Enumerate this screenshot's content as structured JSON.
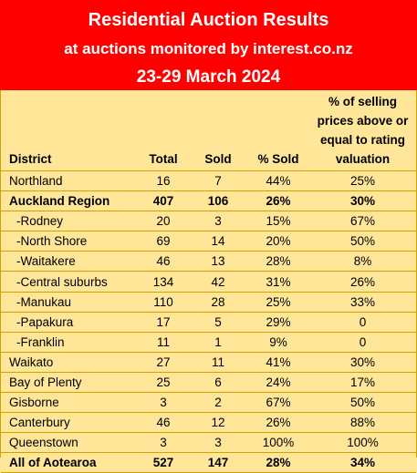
{
  "header": {
    "title": "Residential Auction Results",
    "subtitle": "at auctions monitored by interest.co.nz",
    "date_range": "23-29 March 2024"
  },
  "table": {
    "columns": [
      "District",
      "Total",
      "Sold",
      "% Sold",
      "% of selling prices above or equal to rating valuation"
    ],
    "rows": [
      {
        "district": "Northland",
        "total": "16",
        "sold": "7",
        "pct_sold": "44%",
        "pct_above_rv": "25%",
        "style": "normal"
      },
      {
        "district": "Auckland Region",
        "total": "407",
        "sold": "106",
        "pct_sold": "26%",
        "pct_above_rv": "30%",
        "style": "bold"
      },
      {
        "district": "-Rodney",
        "total": "20",
        "sold": "3",
        "pct_sold": "15%",
        "pct_above_rv": "67%",
        "style": "sub"
      },
      {
        "district": "-North Shore",
        "total": "69",
        "sold": "14",
        "pct_sold": "20%",
        "pct_above_rv": "50%",
        "style": "sub"
      },
      {
        "district": "-Waitakere",
        "total": "46",
        "sold": "13",
        "pct_sold": "28%",
        "pct_above_rv": "8%",
        "style": "sub"
      },
      {
        "district": "-Central suburbs",
        "total": "134",
        "sold": "42",
        "pct_sold": "31%",
        "pct_above_rv": "26%",
        "style": "sub"
      },
      {
        "district": "-Manukau",
        "total": "110",
        "sold": "28",
        "pct_sold": "25%",
        "pct_above_rv": "33%",
        "style": "sub"
      },
      {
        "district": "-Papakura",
        "total": "17",
        "sold": "5",
        "pct_sold": "29%",
        "pct_above_rv": "0",
        "style": "sub"
      },
      {
        "district": "-Franklin",
        "total": "11",
        "sold": "1",
        "pct_sold": "9%",
        "pct_above_rv": "0",
        "style": "sub"
      },
      {
        "district": "Waikato",
        "total": "27",
        "sold": "11",
        "pct_sold": "41%",
        "pct_above_rv": "30%",
        "style": "normal"
      },
      {
        "district": "Bay of Plenty",
        "total": "25",
        "sold": "6",
        "pct_sold": "24%",
        "pct_above_rv": "17%",
        "style": "normal"
      },
      {
        "district": "Gisborne",
        "total": "3",
        "sold": "2",
        "pct_sold": "67%",
        "pct_above_rv": "50%",
        "style": "normal"
      },
      {
        "district": "Canterbury",
        "total": "46",
        "sold": "12",
        "pct_sold": "26%",
        "pct_above_rv": "88%",
        "style": "normal"
      },
      {
        "district": "Queenstown",
        "total": "3",
        "sold": "3",
        "pct_sold": "100%",
        "pct_above_rv": "100%",
        "style": "normal"
      },
      {
        "district": "All of Aotearoa",
        "total": "527",
        "sold": "147",
        "pct_sold": "28%",
        "pct_above_rv": "34%",
        "style": "bold"
      }
    ]
  },
  "colors": {
    "header_bg": "#ff0000",
    "table_bg": "#ffe699"
  }
}
